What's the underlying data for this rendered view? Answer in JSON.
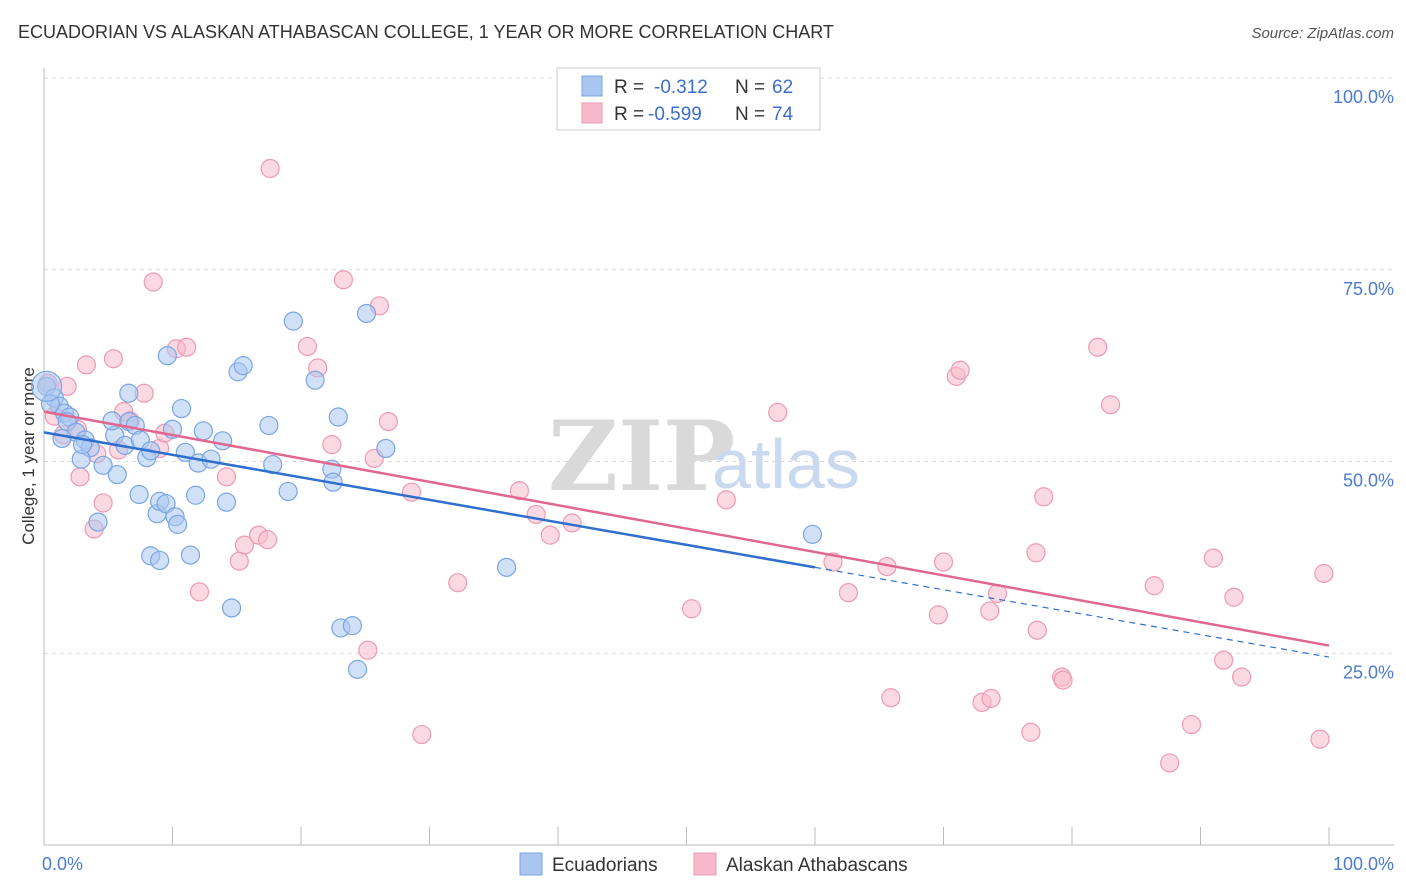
{
  "title": "ECUADORIAN VS ALASKAN ATHABASCAN COLLEGE, 1 YEAR OR MORE CORRELATION CHART",
  "source": "Source: ZipAtlas.com",
  "watermark": {
    "zip": "ZIP",
    "atlas": "atlas"
  },
  "colors": {
    "blue_fill": "#a9c6f0",
    "blue_stroke": "#7aa6e3",
    "blue_line": "#2f6fce",
    "pink_fill": "#f5b9cb",
    "pink_stroke": "#ee9ab4",
    "pink_line": "#e0678f",
    "grid": "#d9d9d9",
    "axis_text": "#4a7bd0"
  },
  "legend": {
    "rows": [
      {
        "r_label": "R =",
        "r_value": "-0.312",
        "n_label": "N =",
        "n_value": "62"
      },
      {
        "r_label": "R =",
        "r_value": "-0.599",
        "n_label": "N =",
        "n_value": "74"
      }
    ]
  },
  "bottom_legend": [
    "Ecuadorians",
    "Alaskan Athabascans"
  ],
  "chart_data": {
    "type": "scatter",
    "title": "ECUADORIAN VS ALASKAN ATHABASCAN COLLEGE, 1 YEAR OR MORE CORRELATION CHART",
    "xlabel": "",
    "ylabel": "College, 1 year or more",
    "xlim": [
      0,
      100
    ],
    "ylim": [
      0,
      100
    ],
    "x_tick_labels": [
      "0.0%",
      "100.0%"
    ],
    "y_tick_labels": [
      "100.0%",
      "75.0%",
      "50.0%",
      "25.0%"
    ],
    "y_tick_values": [
      100,
      75,
      50,
      25
    ],
    "grid": true,
    "legend_position": "top-center",
    "series": [
      {
        "name": "Ecuadorians",
        "r": -0.312,
        "n": 62,
        "trend": {
          "x0": 0,
          "y0": 53.8,
          "x1": 60,
          "y1": 36.2,
          "dash_to_x": 100,
          "dash_to_y": 24.5
        },
        "points": [
          [
            0.2,
            59.8
          ],
          [
            0.8,
            58.3
          ],
          [
            1.2,
            57.2
          ],
          [
            1.6,
            56.3
          ],
          [
            2.0,
            55.8
          ],
          [
            1.8,
            55.2
          ],
          [
            2.5,
            53.8
          ],
          [
            3.2,
            52.8
          ],
          [
            3.6,
            51.8
          ],
          [
            2.9,
            50.3
          ],
          [
            4.6,
            49.5
          ],
          [
            5.5,
            53.4
          ],
          [
            5.3,
            55.3
          ],
          [
            6.6,
            55.2
          ],
          [
            5.7,
            48.3
          ],
          [
            6.3,
            52.1
          ],
          [
            6.6,
            58.9
          ],
          [
            7.1,
            54.7
          ],
          [
            7.4,
            45.7
          ],
          [
            7.5,
            52.8
          ],
          [
            8.0,
            50.5
          ],
          [
            8.3,
            51.4
          ],
          [
            8.3,
            37.7
          ],
          [
            8.8,
            43.2
          ],
          [
            9.0,
            44.8
          ],
          [
            9.0,
            37.1
          ],
          [
            9.5,
            44.5
          ],
          [
            9.6,
            63.8
          ],
          [
            10.0,
            54.2
          ],
          [
            10.2,
            42.8
          ],
          [
            10.4,
            41.8
          ],
          [
            10.7,
            56.9
          ],
          [
            11.0,
            51.2
          ],
          [
            11.4,
            37.8
          ],
          [
            11.8,
            45.6
          ],
          [
            12.0,
            49.8
          ],
          [
            12.4,
            54.0
          ],
          [
            13.0,
            50.3
          ],
          [
            13.9,
            52.7
          ],
          [
            14.2,
            44.7
          ],
          [
            14.6,
            30.9
          ],
          [
            15.1,
            61.7
          ],
          [
            15.5,
            62.5
          ],
          [
            17.5,
            54.7
          ],
          [
            17.8,
            49.6
          ],
          [
            19.0,
            46.1
          ],
          [
            19.4,
            68.3
          ],
          [
            21.1,
            60.6
          ],
          [
            22.4,
            49.0
          ],
          [
            22.5,
            47.3
          ],
          [
            22.9,
            55.8
          ],
          [
            23.1,
            28.3
          ],
          [
            24.0,
            28.6
          ],
          [
            24.4,
            22.9
          ],
          [
            25.1,
            69.3
          ],
          [
            26.6,
            51.7
          ],
          [
            4.2,
            42.1
          ],
          [
            36.0,
            36.2
          ],
          [
            59.8,
            40.5
          ],
          [
            1.4,
            53.0
          ],
          [
            3.0,
            52.2
          ],
          [
            0.5,
            57.5
          ]
        ]
      },
      {
        "name": "Alaskan Athabascans",
        "r": -0.599,
        "n": 74,
        "trend": {
          "x0": 0,
          "y0": 56.5,
          "x1": 100,
          "y1": 26.0
        },
        "points": [
          [
            0.3,
            60.2
          ],
          [
            0.8,
            55.9
          ],
          [
            1.5,
            53.5
          ],
          [
            1.8,
            59.8
          ],
          [
            2.6,
            54.2
          ],
          [
            2.8,
            48.0
          ],
          [
            3.3,
            62.6
          ],
          [
            3.9,
            41.2
          ],
          [
            4.1,
            51.0
          ],
          [
            4.6,
            44.6
          ],
          [
            5.4,
            63.4
          ],
          [
            5.8,
            51.5
          ],
          [
            6.2,
            56.5
          ],
          [
            6.7,
            55.3
          ],
          [
            7.8,
            58.9
          ],
          [
            8.5,
            73.4
          ],
          [
            9.0,
            51.7
          ],
          [
            9.4,
            53.7
          ],
          [
            10.3,
            64.7
          ],
          [
            11.1,
            64.9
          ],
          [
            12.1,
            33.0
          ],
          [
            14.2,
            48.0
          ],
          [
            15.2,
            37.0
          ],
          [
            15.6,
            39.1
          ],
          [
            16.7,
            40.4
          ],
          [
            17.4,
            39.8
          ],
          [
            17.6,
            88.2
          ],
          [
            20.5,
            65.0
          ],
          [
            21.3,
            62.2
          ],
          [
            22.4,
            52.2
          ],
          [
            23.3,
            73.7
          ],
          [
            25.2,
            25.4
          ],
          [
            25.7,
            50.4
          ],
          [
            26.1,
            70.3
          ],
          [
            26.8,
            55.2
          ],
          [
            28.6,
            46.0
          ],
          [
            29.4,
            14.4
          ],
          [
            32.2,
            34.2
          ],
          [
            37.0,
            46.2
          ],
          [
            38.3,
            43.1
          ],
          [
            39.4,
            40.4
          ],
          [
            41.1,
            42.0
          ],
          [
            50.4,
            30.8
          ],
          [
            53.1,
            45.0
          ],
          [
            57.1,
            56.4
          ],
          [
            61.4,
            36.9
          ],
          [
            62.6,
            32.9
          ],
          [
            65.6,
            36.3
          ],
          [
            65.9,
            19.2
          ],
          [
            69.6,
            30.0
          ],
          [
            70.0,
            36.9
          ],
          [
            71.0,
            61.1
          ],
          [
            71.3,
            61.9
          ],
          [
            73.0,
            18.6
          ],
          [
            73.6,
            30.5
          ],
          [
            73.7,
            19.1
          ],
          [
            74.2,
            32.8
          ],
          [
            76.8,
            14.7
          ],
          [
            77.3,
            28.0
          ],
          [
            77.8,
            45.4
          ],
          [
            77.2,
            38.1
          ],
          [
            79.2,
            21.9
          ],
          [
            79.3,
            21.5
          ],
          [
            82.0,
            64.9
          ],
          [
            83.0,
            57.4
          ],
          [
            86.4,
            33.8
          ],
          [
            87.6,
            10.7
          ],
          [
            89.3,
            15.7
          ],
          [
            91.0,
            37.4
          ],
          [
            91.8,
            24.1
          ],
          [
            92.6,
            32.3
          ],
          [
            93.2,
            21.9
          ],
          [
            99.3,
            13.8
          ],
          [
            99.6,
            35.4
          ]
        ]
      }
    ]
  }
}
